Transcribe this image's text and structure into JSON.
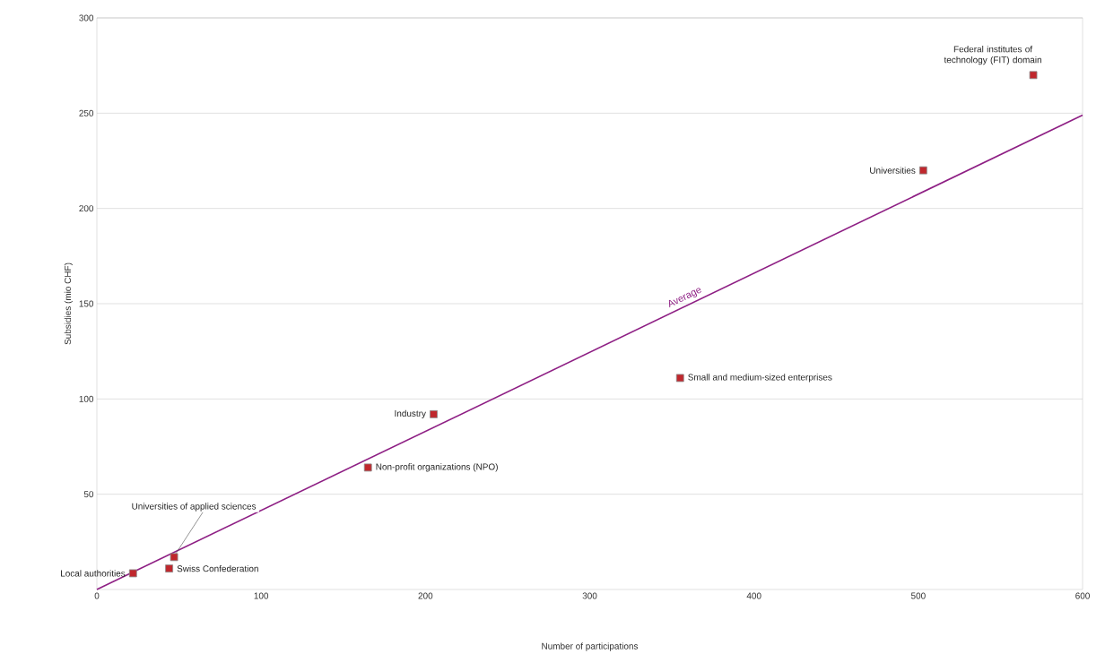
{
  "chart_data": {
    "type": "scatter",
    "xlabel": "Number of participations",
    "ylabel": "Subsidies (mio CHF)",
    "xlim": [
      0,
      600
    ],
    "ylim": [
      0,
      300
    ],
    "xticks": [
      0,
      100,
      200,
      300,
      400,
      500,
      600
    ],
    "yticks": [
      50,
      100,
      150,
      200,
      250,
      300
    ],
    "grid": "y",
    "legend": false,
    "series": [
      {
        "marker": "square",
        "color": "#c0272d",
        "x": [
          22,
          44,
          47,
          165,
          205,
          355,
          503,
          570
        ],
        "values": [
          8.5,
          11,
          17,
          64,
          92,
          111,
          220,
          270
        ]
      },
      {
        "type": "line",
        "name": "Average",
        "color": "#8e1f84",
        "x": [
          0,
          600
        ],
        "values": [
          0,
          249
        ]
      }
    ],
    "annotations": [
      {
        "text": "Local authorities",
        "x": 22,
        "y": 8.5
      },
      {
        "text": "Swiss Confederation",
        "x": 44,
        "y": 11
      },
      {
        "text": "Universities of applied sciences",
        "x": 47,
        "y": 17
      },
      {
        "text": "Non-profit organizations (NPO)",
        "x": 165,
        "y": 64
      },
      {
        "text": "Industry",
        "x": 205,
        "y": 92
      },
      {
        "text": "Small and medium-sized enterprises",
        "x": 355,
        "y": 111
      },
      {
        "text": "Universities",
        "x": 503,
        "y": 220
      },
      {
        "text": "Federal institutes of technology (FIT) domain",
        "x": 570,
        "y": 270
      }
    ]
  }
}
